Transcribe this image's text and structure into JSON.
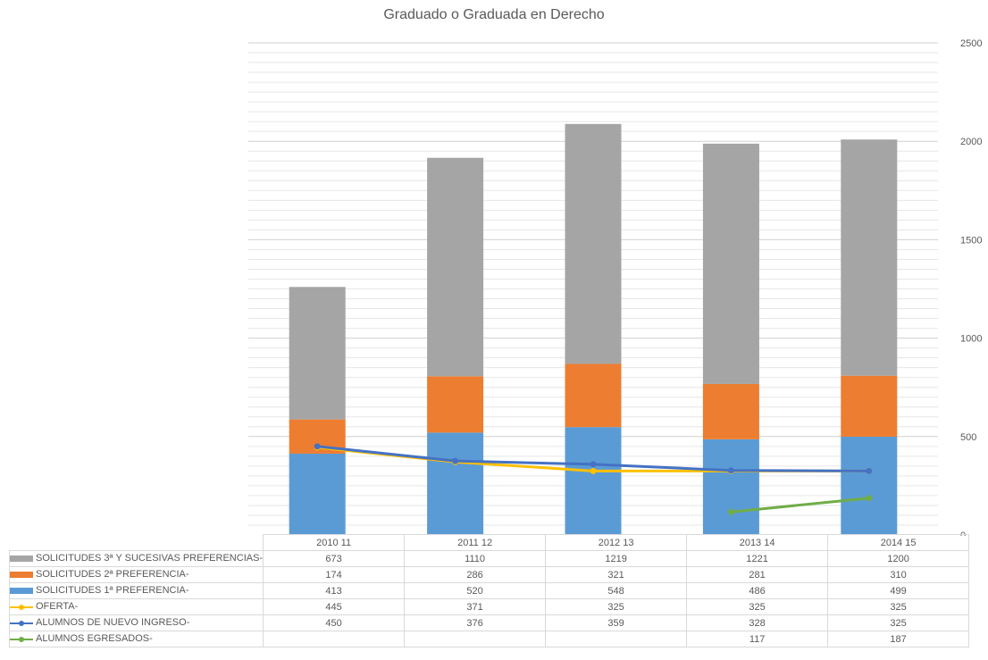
{
  "chart_data": {
    "type": "bar",
    "title": "Graduado o Graduada en Derecho",
    "categories": [
      "2010 11",
      "2011 12",
      "2012 13",
      "2013 14",
      "2014 15"
    ],
    "ylim": [
      0,
      2500
    ],
    "yticks": [
      0,
      500,
      1000,
      1500,
      2000,
      2500
    ],
    "y_axis_side": "right",
    "grid": true,
    "legend": "data table below chart",
    "series": [
      {
        "name": "SOLICITUDES 3ª Y SUCESIVAS PREFERENCIAS-",
        "kind": "stacked-bar",
        "color": "#a5a5a5",
        "values": [
          673,
          1110,
          1219,
          1221,
          1200
        ]
      },
      {
        "name": "SOLICITUDES 2ª PREFERENCIA-",
        "kind": "stacked-bar",
        "color": "#ed7d31",
        "values": [
          174,
          286,
          321,
          281,
          310
        ]
      },
      {
        "name": "SOLICITUDES 1ª PREFERENCIA-",
        "kind": "stacked-bar",
        "color": "#5b9bd5",
        "values": [
          413,
          520,
          548,
          486,
          499
        ]
      },
      {
        "name": "OFERTA-",
        "kind": "line",
        "color": "#ffc000",
        "values": [
          445,
          371,
          325,
          325,
          325
        ]
      },
      {
        "name": "ALUMNOS DE NUEVO INGRESO-",
        "kind": "line",
        "color": "#4472c4",
        "values": [
          450,
          376,
          359,
          328,
          325
        ]
      },
      {
        "name": "ALUMNOS EGRESADOS-",
        "kind": "line",
        "color": "#70ad47",
        "values": [
          null,
          null,
          null,
          117,
          187
        ]
      }
    ]
  }
}
